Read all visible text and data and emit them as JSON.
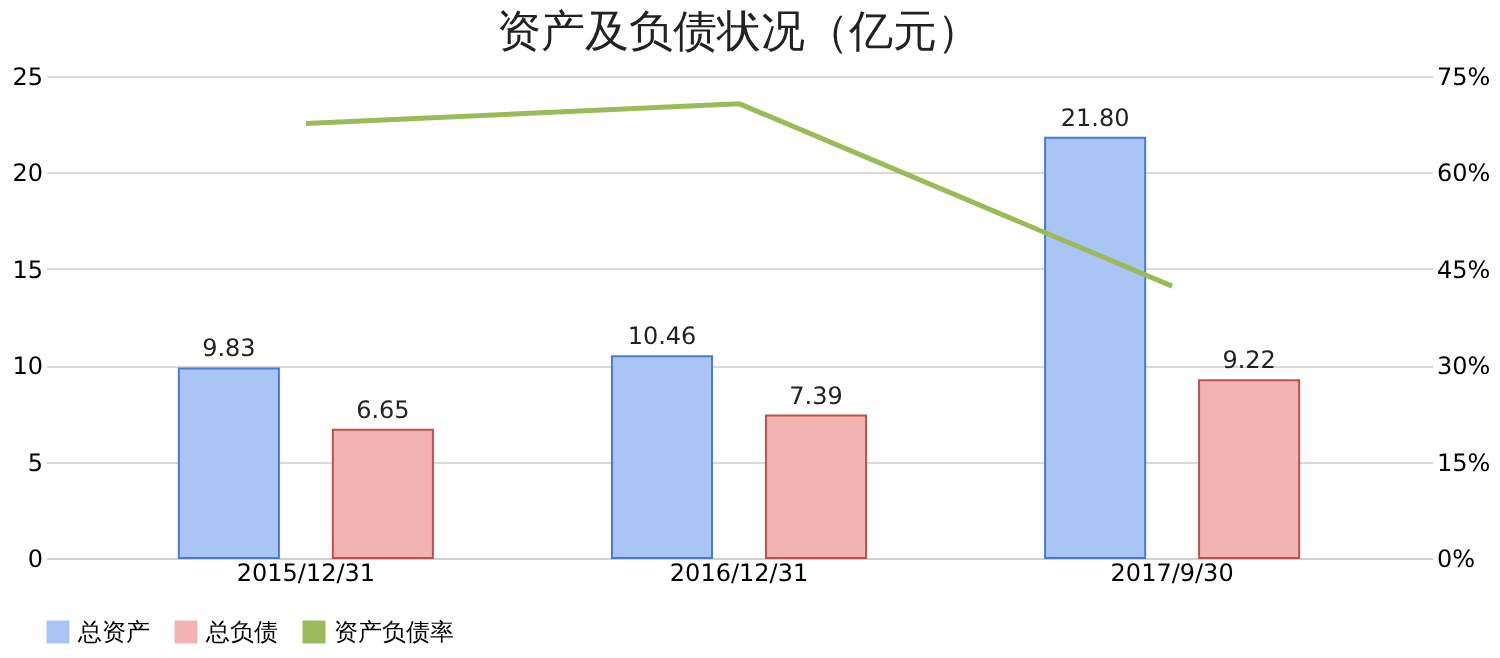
{
  "chart_data": {
    "type": "bar",
    "title": "资产及负债状况（亿元）",
    "categories": [
      "2015/12/31",
      "2016/12/31",
      "2017/9/30"
    ],
    "series": [
      {
        "name": "总资产",
        "color": "#a9c4f5",
        "values": [
          9.83,
          10.46,
          21.8
        ],
        "value_labels": [
          "9.83",
          "10.46",
          "21.80"
        ]
      },
      {
        "name": "总负债",
        "color": "#f4b3b3",
        "values": [
          6.65,
          7.39,
          9.22
        ],
        "value_labels": [
          "6.65",
          "7.39",
          "9.22"
        ]
      },
      {
        "name": "资产负债率",
        "type": "line",
        "axis": "y2",
        "color": "#9bbb59",
        "values": [
          67.6,
          70.7,
          42.3
        ]
      }
    ],
    "ylim": [
      0,
      25
    ],
    "yticks": [
      0,
      5,
      10,
      15,
      20,
      25
    ],
    "y2lim": [
      0,
      75
    ],
    "y2ticks": [
      {
        "value": 0,
        "label": "0%"
      },
      {
        "value": 15,
        "label": "15%"
      },
      {
        "value": 30,
        "label": "30%"
      },
      {
        "value": 45,
        "label": "45%"
      },
      {
        "value": 60,
        "label": "60%"
      },
      {
        "value": 75,
        "label": "75%"
      }
    ],
    "grid": "y",
    "legend": "bottom"
  }
}
